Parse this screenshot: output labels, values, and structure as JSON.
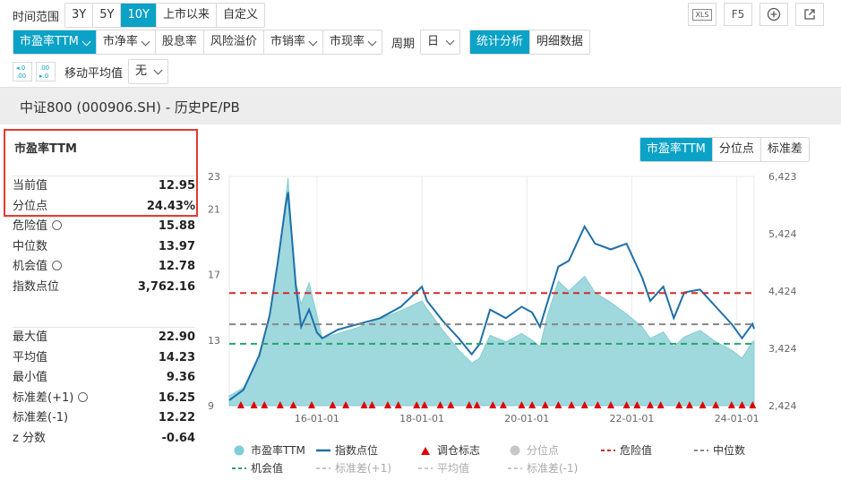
{
  "toolbar": {
    "time_range_label": "时间范围",
    "time_ranges": [
      "3Y",
      "5Y",
      "10Y",
      "上市以来",
      "自定义"
    ],
    "time_range_active": "10Y",
    "right_icons": [
      "excel-icon",
      "F5",
      "plus-icon",
      "export-icon"
    ],
    "f5_label": "F5",
    "xls_label": "XLS",
    "metrics": [
      {
        "label": "市盈率TTM",
        "dropdown": true,
        "active": true
      },
      {
        "label": "市净率",
        "dropdown": true
      },
      {
        "label": "股息率",
        "dropdown": false
      },
      {
        "label": "风险溢价",
        "dropdown": false
      },
      {
        "label": "市销率",
        "dropdown": true
      },
      {
        "label": "市现率",
        "dropdown": true
      }
    ],
    "period_label": "周期",
    "period_value": "日",
    "view_tabs": [
      "统计分析",
      "明细数据"
    ],
    "view_active": "统计分析",
    "moving_avg_label": "移动平均值",
    "moving_avg_value": "无"
  },
  "title": "中证800 (000906.SH) - 历史PE/PB",
  "stats": {
    "heading": "市盈率TTM",
    "group1": [
      {
        "label": "当前值",
        "value": "12.95"
      },
      {
        "label": "分位点",
        "value": "24.43%"
      },
      {
        "label": "危险值",
        "value": "15.88",
        "gear": true
      },
      {
        "label": "中位数",
        "value": "13.97"
      },
      {
        "label": "机会值",
        "value": "12.78",
        "gear": true
      },
      {
        "label": "指数点位",
        "value": "3,762.16"
      }
    ],
    "group2": [
      {
        "label": "最大值",
        "value": "22.90"
      },
      {
        "label": "平均值",
        "value": "14.23"
      },
      {
        "label": "最小值",
        "value": "9.36"
      },
      {
        "label": "标准差(+1)",
        "value": "16.25",
        "gear": true
      },
      {
        "label": "标准差(-1)",
        "value": "12.22"
      },
      {
        "label": "z 分数",
        "value": "-0.64"
      }
    ]
  },
  "chart_tabs": [
    "市盈率TTM",
    "分位点",
    "标准差"
  ],
  "chart_tab_active": "市盈率TTM",
  "chart_data": {
    "type": "area",
    "y_left_ticks": [
      "9",
      "13",
      "17",
      "21",
      "23"
    ],
    "y_right_ticks": [
      "2,424",
      "3,424",
      "4,424",
      "5,424",
      "6,423"
    ],
    "x_ticks": [
      "16-01-01",
      "18-01-01",
      "20-01-01",
      "22-01-01",
      "24-01-01"
    ],
    "ylim_left": [
      9,
      23
    ],
    "ylim_right": [
      2424,
      6423
    ],
    "x_range": [
      "2014-05-01",
      "2024-05-01"
    ],
    "danger": 15.88,
    "median": 13.97,
    "opportunity": 12.78,
    "pe_series": [
      [
        2014.33,
        9.6
      ],
      [
        2014.6,
        10.1
      ],
      [
        2014.9,
        11.8
      ],
      [
        2015.1,
        14.5
      ],
      [
        2015.25,
        17.5
      ],
      [
        2015.4,
        21.5
      ],
      [
        2015.45,
        22.9
      ],
      [
        2015.52,
        19.5
      ],
      [
        2015.6,
        16.5
      ],
      [
        2015.7,
        15.2
      ],
      [
        2015.85,
        16.5
      ],
      [
        2016.0,
        14.5
      ],
      [
        2016.1,
        13.1
      ],
      [
        2016.4,
        13.4
      ],
      [
        2016.8,
        13.8
      ],
      [
        2017.2,
        14.3
      ],
      [
        2017.6,
        14.8
      ],
      [
        2018.0,
        15.4
      ],
      [
        2018.1,
        14.9
      ],
      [
        2018.4,
        13.6
      ],
      [
        2018.7,
        12.4
      ],
      [
        2018.95,
        11.6
      ],
      [
        2019.1,
        11.9
      ],
      [
        2019.3,
        13.3
      ],
      [
        2019.6,
        12.9
      ],
      [
        2019.9,
        13.4
      ],
      [
        2020.1,
        13.0
      ],
      [
        2020.25,
        12.6
      ],
      [
        2020.4,
        14.6
      ],
      [
        2020.6,
        16.6
      ],
      [
        2020.8,
        16.0
      ],
      [
        2021.1,
        16.9
      ],
      [
        2021.3,
        15.9
      ],
      [
        2021.6,
        15.3
      ],
      [
        2021.9,
        14.6
      ],
      [
        2022.2,
        13.8
      ],
      [
        2022.35,
        13.1
      ],
      [
        2022.6,
        13.5
      ],
      [
        2022.8,
        12.6
      ],
      [
        2023.0,
        13.2
      ],
      [
        2023.3,
        13.6
      ],
      [
        2023.6,
        12.9
      ],
      [
        2023.9,
        12.4
      ],
      [
        2024.1,
        11.9
      ],
      [
        2024.3,
        12.9
      ],
      [
        2024.33,
        12.95
      ]
    ],
    "index_series": [
      [
        2014.33,
        2520
      ],
      [
        2014.6,
        2700
      ],
      [
        2014.9,
        3300
      ],
      [
        2015.1,
        4000
      ],
      [
        2015.25,
        4900
      ],
      [
        2015.4,
        5900
      ],
      [
        2015.45,
        6150
      ],
      [
        2015.52,
        5400
      ],
      [
        2015.6,
        4500
      ],
      [
        2015.7,
        3800
      ],
      [
        2015.85,
        4100
      ],
      [
        2016.0,
        3700
      ],
      [
        2016.1,
        3600
      ],
      [
        2016.4,
        3750
      ],
      [
        2016.8,
        3850
      ],
      [
        2017.2,
        3950
      ],
      [
        2017.6,
        4150
      ],
      [
        2018.0,
        4500
      ],
      [
        2018.1,
        4250
      ],
      [
        2018.4,
        3900
      ],
      [
        2018.7,
        3600
      ],
      [
        2018.95,
        3320
      ],
      [
        2019.1,
        3500
      ],
      [
        2019.3,
        4100
      ],
      [
        2019.6,
        3950
      ],
      [
        2019.9,
        4150
      ],
      [
        2020.1,
        4050
      ],
      [
        2020.25,
        3800
      ],
      [
        2020.4,
        4250
      ],
      [
        2020.6,
        4850
      ],
      [
        2020.8,
        4950
      ],
      [
        2021.1,
        5550
      ],
      [
        2021.3,
        5250
      ],
      [
        2021.6,
        5150
      ],
      [
        2021.9,
        5250
      ],
      [
        2022.2,
        4650
      ],
      [
        2022.35,
        4250
      ],
      [
        2022.6,
        4500
      ],
      [
        2022.8,
        3950
      ],
      [
        2023.0,
        4400
      ],
      [
        2023.3,
        4450
      ],
      [
        2023.6,
        4150
      ],
      [
        2023.9,
        3850
      ],
      [
        2024.1,
        3600
      ],
      [
        2024.3,
        3850
      ],
      [
        2024.33,
        3762
      ]
    ],
    "rebalance_marks": [
      2014.55,
      2014.8,
      2015.0,
      2015.3,
      2015.55,
      2015.9,
      2016.3,
      2016.55,
      2016.9,
      2017.05,
      2017.35,
      2017.55,
      2017.9,
      2018.05,
      2018.35,
      2018.55,
      2018.9,
      2019.05,
      2019.35,
      2019.55,
      2019.9,
      2020.1,
      2020.35,
      2020.6,
      2020.85,
      2021.1,
      2021.35,
      2021.6,
      2021.9,
      2022.1,
      2022.35,
      2022.55,
      2022.9,
      2023.1,
      2023.35,
      2023.6,
      2023.9,
      2024.1,
      2024.3
    ],
    "legend": [
      {
        "label": "市盈率TTM",
        "type": "dot",
        "color": "#7ecfd6"
      },
      {
        "label": "指数点位",
        "type": "line",
        "color": "#1f6fa8"
      },
      {
        "label": "调仓标志",
        "type": "triangle",
        "color": "#e00000"
      },
      {
        "label": "分位点",
        "type": "dot",
        "color": "#c8c8c8",
        "dim": true
      },
      {
        "label": "危险值",
        "type": "dash",
        "color": "#d42a2a"
      },
      {
        "label": "中位数",
        "type": "dash",
        "color": "#888888"
      },
      {
        "label": "机会值",
        "type": "dash",
        "color": "#27a46b"
      },
      {
        "label": "标准差(+1)",
        "type": "dash",
        "color": "#c8c8c8",
        "dim": true
      },
      {
        "label": "平均值",
        "type": "dash",
        "color": "#c8c8c8",
        "dim": true
      },
      {
        "label": "标准差(-1)",
        "type": "dash",
        "color": "#c8c8c8",
        "dim": true
      }
    ]
  }
}
